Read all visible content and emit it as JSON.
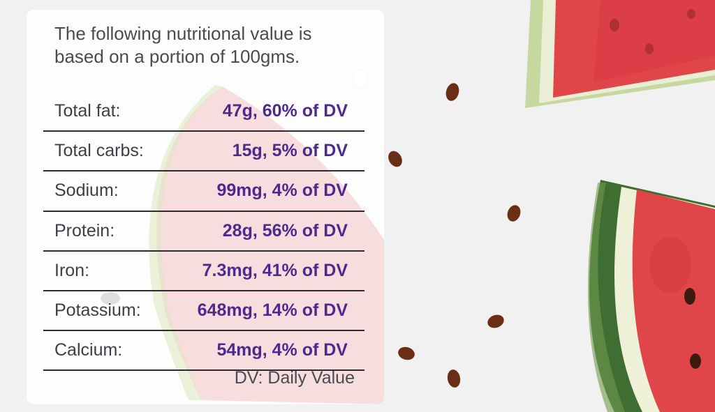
{
  "intro_text": "The following nutritional value is based on a portion of 100gms.",
  "nutrients": [
    {
      "label": "Total fat:",
      "value": "47g, 60% of DV"
    },
    {
      "label": "Total carbs:",
      "value": "15g, 5% of DV"
    },
    {
      "label": "Sodium:",
      "value": "99mg, 4% of DV"
    },
    {
      "label": "Protein:",
      "value": "28g, 56% of DV"
    },
    {
      "label": "Iron:",
      "value": "7.3mg, 41% of DV"
    },
    {
      "label": "Potassium:",
      "value": "648mg, 14% of DV"
    },
    {
      "label": "Calcium:",
      "value": "54mg, 4% of DV"
    }
  ],
  "footnote": "DV: Daily Value",
  "colors": {
    "background": "#f1f1f2",
    "value_text": "#4e2a8e",
    "label_text": "#3e3e46",
    "rule": "#2d2a32",
    "melon_flesh": "#e0454a",
    "melon_rind": "#4d7a3a",
    "seed": "#5a2a14"
  }
}
